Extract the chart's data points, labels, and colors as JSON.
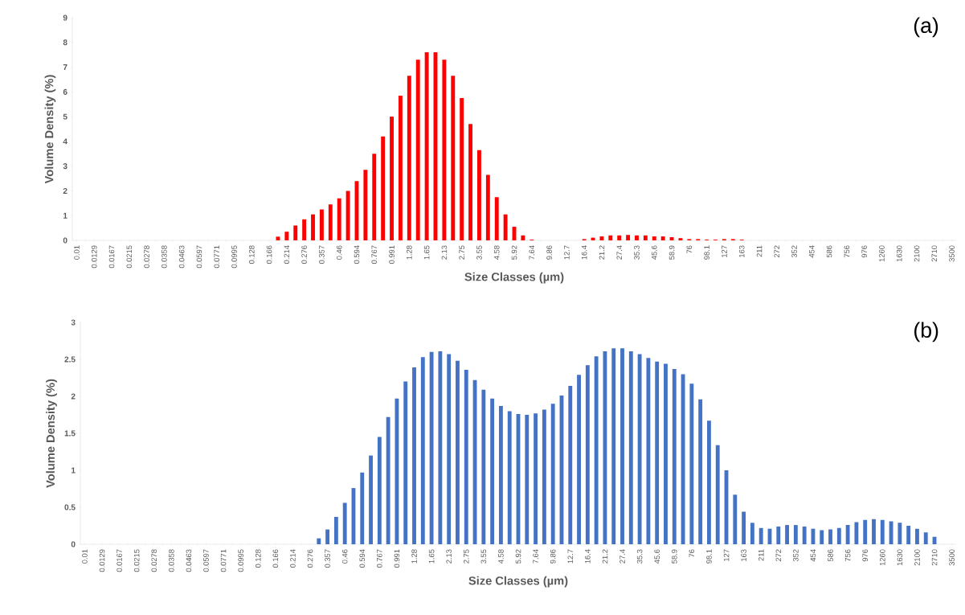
{
  "chart_data": [
    {
      "type": "bar",
      "title": "(a)",
      "xlabel": "Size Classes (µm)",
      "ylabel": "Volume Density (%)",
      "color": "#ff0000",
      "categories": [
        "0.01",
        null,
        "0.0129",
        null,
        "0.0167",
        null,
        "0.0215",
        null,
        "0.0278",
        null,
        "0.0358",
        null,
        "0.0463",
        null,
        "0.0597",
        null,
        "0.0771",
        null,
        "0.0995",
        null,
        "0.128",
        null,
        "0.166",
        null,
        "0.214",
        null,
        "0.276",
        null,
        "0.357",
        null,
        "0.46",
        null,
        "0.594",
        null,
        "0.767",
        null,
        "0.991",
        null,
        "1.28",
        null,
        "1.65",
        null,
        "2.13",
        null,
        "2.75",
        null,
        "3.55",
        null,
        "4.58",
        null,
        "5.92",
        null,
        "7.64",
        null,
        "9.86",
        null,
        "12.7",
        null,
        "16.4",
        null,
        "21.2",
        null,
        "27.4",
        null,
        "35.3",
        null,
        "45.6",
        null,
        "58.9",
        null,
        "76",
        null,
        "98.1",
        null,
        "127",
        null,
        "163",
        null,
        "211",
        null,
        "272",
        null,
        "352",
        null,
        "454",
        null,
        "586",
        null,
        "756",
        null,
        "976",
        null,
        "1260",
        null,
        "1630",
        null,
        "2100",
        null,
        "2710",
        null,
        "3500"
      ],
      "values": [
        0,
        0,
        0,
        0,
        0,
        0,
        0,
        0,
        0,
        0,
        0,
        0,
        0,
        0,
        0,
        0,
        0,
        0,
        0,
        0,
        0,
        0,
        0,
        0.15,
        0.35,
        0.6,
        0.85,
        1.05,
        1.25,
        1.45,
        1.7,
        2.0,
        2.4,
        2.85,
        3.5,
        4.2,
        5.0,
        5.85,
        6.65,
        7.3,
        7.6,
        7.6,
        7.3,
        6.65,
        5.75,
        4.7,
        3.65,
        2.65,
        1.75,
        1.05,
        0.55,
        0.2,
        0.03,
        0,
        0,
        0,
        0,
        0,
        0.05,
        0.11,
        0.16,
        0.2,
        0.2,
        0.22,
        0.2,
        0.2,
        0.16,
        0.16,
        0.13,
        0.09,
        0.05,
        0.05,
        0.03,
        0.03,
        0.05,
        0.05,
        0.03,
        0,
        0,
        0,
        0,
        0,
        0,
        0,
        0,
        0,
        0,
        0,
        0,
        0,
        0,
        0,
        0,
        0,
        0,
        0,
        0,
        0,
        0,
        0,
        0
      ],
      "ylim": [
        0,
        9
      ],
      "yticks": [
        0,
        1,
        2,
        3,
        4,
        5,
        6,
        7,
        8,
        9
      ]
    },
    {
      "type": "bar",
      "title": "(b)",
      "xlabel": "Size Classes (µm)",
      "ylabel": "Volume Density (%)",
      "color": "#4472c4",
      "categories": [
        "0.01",
        null,
        "0.0129",
        null,
        "0.0167",
        null,
        "0.0215",
        null,
        "0.0278",
        null,
        "0.0358",
        null,
        "0.0463",
        null,
        "0.0597",
        null,
        "0.0771",
        null,
        "0.0995",
        null,
        "0.128",
        null,
        "0.166",
        null,
        "0.214",
        null,
        "0.276",
        null,
        "0.357",
        null,
        "0.46",
        null,
        "0.594",
        null,
        "0.767",
        null,
        "0.991",
        null,
        "1.28",
        null,
        "1.65",
        null,
        "2.13",
        null,
        "2.75",
        null,
        "3.55",
        null,
        "4.58",
        null,
        "5.92",
        null,
        "7.64",
        null,
        "9.86",
        null,
        "12.7",
        null,
        "16.4",
        null,
        "21.2",
        null,
        "27.4",
        null,
        "35.3",
        null,
        "45.6",
        null,
        "58.9",
        null,
        "76",
        null,
        "98.1",
        null,
        "127",
        null,
        "163",
        null,
        "211",
        null,
        "272",
        null,
        "352",
        null,
        "454",
        null,
        "586",
        null,
        "756",
        null,
        "976",
        null,
        "1260",
        null,
        "1630",
        null,
        "2100",
        null,
        "2710",
        null,
        "3500"
      ],
      "values": [
        0,
        0,
        0,
        0,
        0,
        0,
        0,
        0,
        0,
        0,
        0,
        0,
        0,
        0,
        0,
        0,
        0,
        0,
        0,
        0,
        0,
        0,
        0,
        0,
        0,
        0,
        0,
        0.08,
        0.2,
        0.37,
        0.56,
        0.76,
        0.97,
        1.2,
        1.45,
        1.72,
        1.97,
        2.2,
        2.39,
        2.53,
        2.6,
        2.61,
        2.57,
        2.48,
        2.36,
        2.22,
        2.09,
        1.97,
        1.87,
        1.8,
        1.76,
        1.75,
        1.77,
        1.82,
        1.9,
        2.01,
        2.14,
        2.29,
        2.42,
        2.54,
        2.61,
        2.65,
        2.65,
        2.61,
        2.57,
        2.52,
        2.47,
        2.44,
        2.37,
        2.3,
        2.17,
        1.96,
        1.67,
        1.34,
        1.0,
        0.67,
        0.44,
        0.29,
        0.22,
        0.21,
        0.24,
        0.26,
        0.26,
        0.24,
        0.21,
        0.19,
        0.2,
        0.22,
        0.26,
        0.3,
        0.33,
        0.34,
        0.33,
        0.31,
        0.29,
        0.25,
        0.21,
        0.16,
        0.1,
        0,
        0
      ],
      "ylim": [
        0,
        3
      ],
      "yticks": [
        0,
        0.5,
        1,
        1.5,
        2,
        2.5,
        3
      ]
    }
  ]
}
